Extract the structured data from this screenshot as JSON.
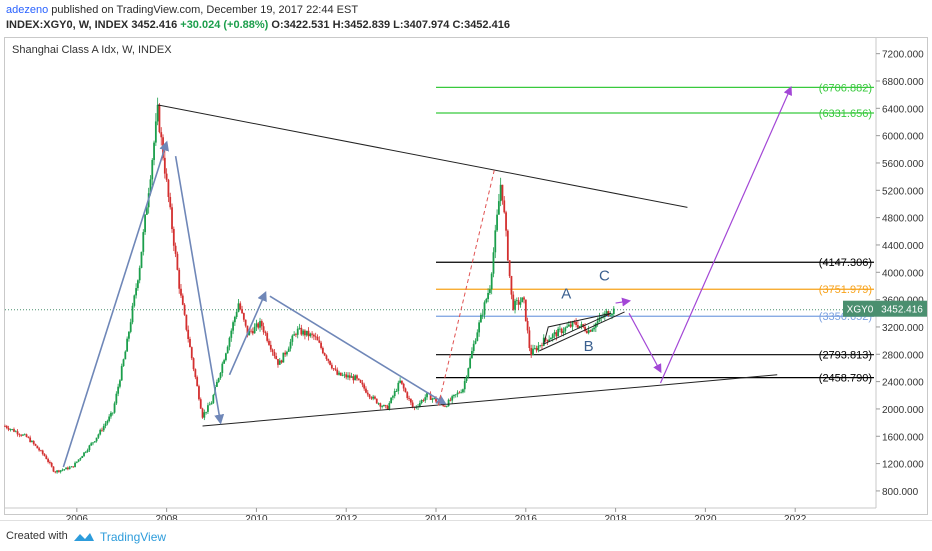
{
  "header": {
    "publisher": "adezeno",
    "published_text": "published on TradingView.com, December 19, 2017 22:44 EST",
    "symbol": "INDEX:XGY0, W, INDEX",
    "last": "3452.416",
    "change": "+30.024 (+0.88%)",
    "open": "O:3422.531",
    "high": "H:3452.839",
    "low": "L:3407.974",
    "close": "C:3452.416"
  },
  "footer": {
    "created_with": "Created with",
    "brand": "TradingView"
  },
  "colors": {
    "up": "#1b9e4b",
    "down": "#d32f2f",
    "wave_arrow": "#6f87b8",
    "projection": "#a347d6",
    "green_level": "#38c93d",
    "orange_level": "#f7a21a",
    "blue_level": "#7aa0e0",
    "last_price_badge": "#4a8f6f"
  },
  "chart_data": {
    "type": "candlestick",
    "title": "Shanghai Class A Idx, W, INDEX",
    "x_ticks": [
      "2006",
      "2008",
      "2010",
      "2012",
      "2014",
      "2016",
      "2018",
      "2020",
      "2022"
    ],
    "y_ticks": [
      "800.000",
      "1200.000",
      "1600.000",
      "2000.000",
      "2400.000",
      "2800.000",
      "3200.000",
      "3600.000",
      "4000.000",
      "4400.000",
      "4800.000",
      "5200.000",
      "5600.000",
      "6000.000",
      "6400.000",
      "6800.000",
      "7200.000"
    ],
    "ylim": [
      550,
      7400
    ],
    "xlim": [
      2004.4,
      2023.8
    ],
    "price_path": [
      [
        2004.4,
        1750
      ],
      [
        2004.9,
        1580
      ],
      [
        2005.3,
        1300
      ],
      [
        2005.5,
        1080
      ],
      [
        2005.9,
        1150
      ],
      [
        2006.4,
        1550
      ],
      [
        2006.8,
        1950
      ],
      [
        2007.1,
        2900
      ],
      [
        2007.4,
        4100
      ],
      [
        2007.8,
        6350
      ],
      [
        2008.0,
        5300
      ],
      [
        2008.3,
        3700
      ],
      [
        2008.6,
        2600
      ],
      [
        2008.8,
        1900
      ],
      [
        2009.0,
        2100
      ],
      [
        2009.3,
        2800
      ],
      [
        2009.6,
        3550
      ],
      [
        2009.8,
        3100
      ],
      [
        2010.1,
        3250
      ],
      [
        2010.5,
        2650
      ],
      [
        2010.9,
        3150
      ],
      [
        2011.3,
        3050
      ],
      [
        2011.8,
        2500
      ],
      [
        2012.2,
        2450
      ],
      [
        2012.6,
        2150
      ],
      [
        2012.9,
        2000
      ],
      [
        2013.2,
        2400
      ],
      [
        2013.5,
        2000
      ],
      [
        2013.8,
        2200
      ],
      [
        2014.2,
        2050
      ],
      [
        2014.6,
        2300
      ],
      [
        2014.9,
        3100
      ],
      [
        2015.2,
        3800
      ],
      [
        2015.45,
        5350
      ],
      [
        2015.7,
        3500
      ],
      [
        2015.95,
        3600
      ],
      [
        2016.1,
        2800
      ],
      [
        2016.4,
        3000
      ],
      [
        2016.8,
        3150
      ],
      [
        2017.1,
        3250
      ],
      [
        2017.4,
        3150
      ],
      [
        2017.8,
        3400
      ],
      [
        2017.97,
        3452
      ]
    ],
    "horizontal_levels": [
      {
        "label": "(6706.882)",
        "value": 6706.882,
        "color": "#38c93d"
      },
      {
        "label": "(6331.656)",
        "value": 6331.656,
        "color": "#38c93d"
      },
      {
        "label": "(4147.306)",
        "value": 4147.306,
        "color": "#000000"
      },
      {
        "label": "(3751.979)",
        "value": 3751.979,
        "color": "#f7a21a"
      },
      {
        "label": "(3356.652)",
        "value": 3356.652,
        "color": "#7aa0e0"
      },
      {
        "label": "(2793.813)",
        "value": 2793.813,
        "color": "#000000"
      },
      {
        "label": "(2458.790)",
        "value": 2458.79,
        "color": "#000000"
      }
    ],
    "trendlines": [
      {
        "from": [
          2007.8,
          6450
        ],
        "to": [
          2019.6,
          4950
        ]
      },
      {
        "from": [
          2008.8,
          1750
        ],
        "to": [
          2021.6,
          2500
        ]
      }
    ],
    "wave_labels": [
      {
        "text": "A",
        "x": 2016.9,
        "y": 3620
      },
      {
        "text": "B",
        "x": 2017.4,
        "y": 2850
      },
      {
        "text": "C",
        "x": 2017.75,
        "y": 3880
      }
    ],
    "last_price": {
      "symbol": "XGY0",
      "value": "3452.416"
    }
  }
}
